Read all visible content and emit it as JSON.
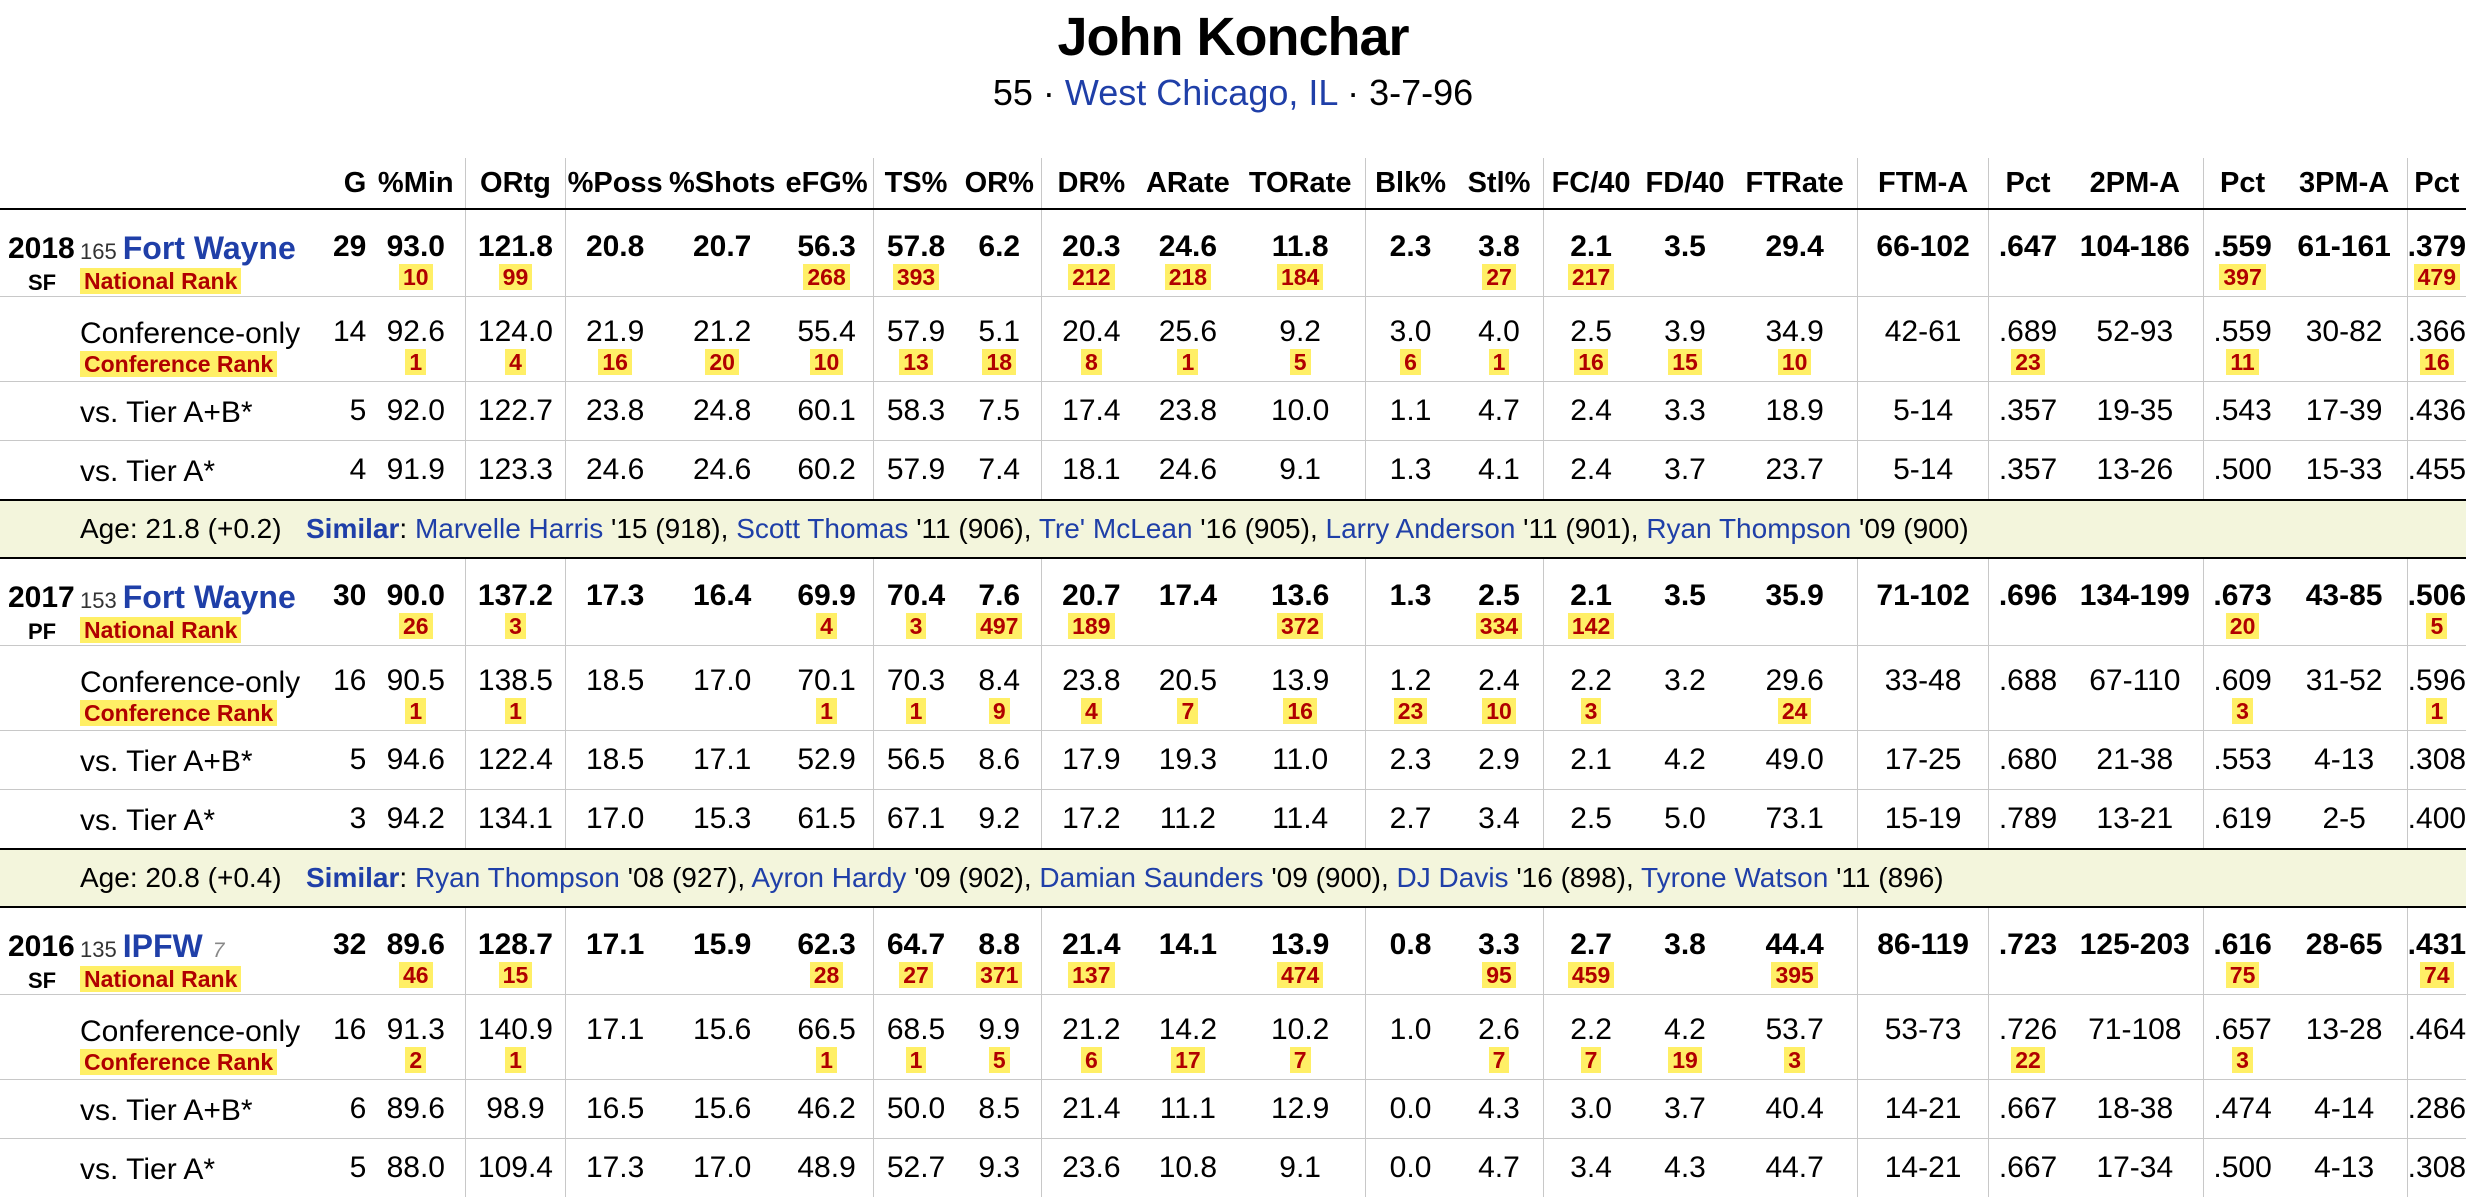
{
  "player": {
    "name": "John Konchar",
    "number": "55",
    "hometown": "West Chicago, IL",
    "birthdate": "3-7-96"
  },
  "columns": [
    "G",
    "%Min",
    "ORtg",
    "%Poss",
    "%Shots",
    "eFG%",
    "TS%",
    "OR%",
    "DR%",
    "ARate",
    "TORate",
    "Blk%",
    "Stl%",
    "FC/40",
    "FD/40",
    "FTRate",
    "FTM-A",
    "Pct",
    "2PM-A",
    "Pct",
    "3PM-A",
    "Pct"
  ],
  "labels": {
    "national_rank": "National Rank",
    "conference_rank": "Conference Rank",
    "conference_only": "Conference-only",
    "tier_ab": "vs. Tier A+B*",
    "tier_a": "vs. Tier A*",
    "similar": "Similar"
  },
  "seasons": [
    {
      "year": "2018",
      "pos": "SF",
      "team_rank": "165",
      "team": "Fort Wayne",
      "team_sub": "",
      "main": {
        "values": [
          "29",
          "93.0",
          "121.8",
          "20.8",
          "20.7",
          "56.3",
          "57.8",
          "6.2",
          "20.3",
          "24.6",
          "11.8",
          "2.3",
          "3.8",
          "2.1",
          "3.5",
          "29.4",
          "66-102",
          ".647",
          "104-186",
          ".559",
          "61-161",
          ".379"
        ],
        "ranks": [
          "",
          "10",
          "99",
          "",
          "",
          "268",
          "393",
          "",
          "212",
          "218",
          "184",
          "",
          "27",
          "217",
          "",
          "",
          "",
          "",
          "",
          "397",
          "",
          "479"
        ]
      },
      "conf": {
        "values": [
          "14",
          "92.6",
          "124.0",
          "21.9",
          "21.2",
          "55.4",
          "57.9",
          "5.1",
          "20.4",
          "25.6",
          "9.2",
          "3.0",
          "4.0",
          "2.5",
          "3.9",
          "34.9",
          "42-61",
          ".689",
          "52-93",
          ".559",
          "30-82",
          ".366"
        ],
        "ranks": [
          "",
          "1",
          "4",
          "16",
          "20",
          "10",
          "13",
          "18",
          "8",
          "1",
          "5",
          "6",
          "1",
          "16",
          "15",
          "10",
          "",
          "23",
          "",
          "11",
          "",
          "16"
        ]
      },
      "tier_ab": {
        "values": [
          "5",
          "92.0",
          "122.7",
          "23.8",
          "24.8",
          "60.1",
          "58.3",
          "7.5",
          "17.4",
          "23.8",
          "10.0",
          "1.1",
          "4.7",
          "2.4",
          "3.3",
          "18.9",
          "5-14",
          ".357",
          "19-35",
          ".543",
          "17-39",
          ".436"
        ]
      },
      "tier_a": {
        "values": [
          "4",
          "91.9",
          "123.3",
          "24.6",
          "24.6",
          "60.2",
          "57.9",
          "7.4",
          "18.1",
          "24.6",
          "9.1",
          "1.3",
          "4.1",
          "2.4",
          "3.7",
          "23.7",
          "5-14",
          ".357",
          "13-26",
          ".500",
          "15-33",
          ".455"
        ]
      },
      "age": "Age: 21.8 (+0.2)",
      "similar": [
        {
          "name": "Marvelle Harris",
          "detail": " '15 (918)"
        },
        {
          "name": "Scott Thomas",
          "detail": " '11 (906)"
        },
        {
          "name": "Tre' McLean",
          "detail": " '16 (905)"
        },
        {
          "name": "Larry Anderson",
          "detail": " '11 (901)"
        },
        {
          "name": "Ryan Thompson",
          "detail": " '09 (900)"
        }
      ]
    },
    {
      "year": "2017",
      "pos": "PF",
      "team_rank": "153",
      "team": "Fort Wayne",
      "team_sub": "",
      "main": {
        "values": [
          "30",
          "90.0",
          "137.2",
          "17.3",
          "16.4",
          "69.9",
          "70.4",
          "7.6",
          "20.7",
          "17.4",
          "13.6",
          "1.3",
          "2.5",
          "2.1",
          "3.5",
          "35.9",
          "71-102",
          ".696",
          "134-199",
          ".673",
          "43-85",
          ".506"
        ],
        "ranks": [
          "",
          "26",
          "3",
          "",
          "",
          "4",
          "3",
          "497",
          "189",
          "",
          "372",
          "",
          "334",
          "142",
          "",
          "",
          "",
          "",
          "",
          "20",
          "",
          "5"
        ]
      },
      "conf": {
        "values": [
          "16",
          "90.5",
          "138.5",
          "18.5",
          "17.0",
          "70.1",
          "70.3",
          "8.4",
          "23.8",
          "20.5",
          "13.9",
          "1.2",
          "2.4",
          "2.2",
          "3.2",
          "29.6",
          "33-48",
          ".688",
          "67-110",
          ".609",
          "31-52",
          ".596"
        ],
        "ranks": [
          "",
          "1",
          "1",
          "",
          "",
          "1",
          "1",
          "9",
          "4",
          "7",
          "16",
          "23",
          "10",
          "3",
          "",
          "24",
          "",
          "",
          "",
          "3",
          "",
          "1"
        ]
      },
      "tier_ab": {
        "values": [
          "5",
          "94.6",
          "122.4",
          "18.5",
          "17.1",
          "52.9",
          "56.5",
          "8.6",
          "17.9",
          "19.3",
          "11.0",
          "2.3",
          "2.9",
          "2.1",
          "4.2",
          "49.0",
          "17-25",
          ".680",
          "21-38",
          ".553",
          "4-13",
          ".308"
        ]
      },
      "tier_a": {
        "values": [
          "3",
          "94.2",
          "134.1",
          "17.0",
          "15.3",
          "61.5",
          "67.1",
          "9.2",
          "17.2",
          "11.2",
          "11.4",
          "2.7",
          "3.4",
          "2.5",
          "5.0",
          "73.1",
          "15-19",
          ".789",
          "13-21",
          ".619",
          "2-5",
          ".400"
        ]
      },
      "age": "Age: 20.8 (+0.4)",
      "similar": [
        {
          "name": "Ryan Thompson",
          "detail": " '08 (927)"
        },
        {
          "name": "Ayron Hardy",
          "detail": " '09 (902)"
        },
        {
          "name": "Damian Saunders",
          "detail": " '09 (900)"
        },
        {
          "name": "DJ Davis",
          "detail": " '16 (898)"
        },
        {
          "name": "Tyrone Watson",
          "detail": " '11 (896)"
        }
      ]
    },
    {
      "year": "2016",
      "pos": "SF",
      "team_rank": "135",
      "team": "IPFW",
      "team_sub": "7",
      "main": {
        "values": [
          "32",
          "89.6",
          "128.7",
          "17.1",
          "15.9",
          "62.3",
          "64.7",
          "8.8",
          "21.4",
          "14.1",
          "13.9",
          "0.8",
          "3.3",
          "2.7",
          "3.8",
          "44.4",
          "86-119",
          ".723",
          "125-203",
          ".616",
          "28-65",
          ".431"
        ],
        "ranks": [
          "",
          "46",
          "15",
          "",
          "",
          "28",
          "27",
          "371",
          "137",
          "",
          "474",
          "",
          "95",
          "459",
          "",
          "395",
          "",
          "",
          "",
          "75",
          "",
          "74"
        ]
      },
      "conf": {
        "values": [
          "16",
          "91.3",
          "140.9",
          "17.1",
          "15.6",
          "66.5",
          "68.5",
          "9.9",
          "21.2",
          "14.2",
          "10.2",
          "1.0",
          "2.6",
          "2.2",
          "4.2",
          "53.7",
          "53-73",
          ".726",
          "71-108",
          ".657",
          "13-28",
          ".464"
        ],
        "ranks": [
          "",
          "2",
          "1",
          "",
          "",
          "1",
          "1",
          "5",
          "6",
          "17",
          "7",
          "",
          "7",
          "7",
          "19",
          "3",
          "",
          "22",
          "",
          "3",
          "",
          ""
        ]
      },
      "tier_ab": {
        "values": [
          "6",
          "89.6",
          "98.9",
          "16.5",
          "15.6",
          "46.2",
          "50.0",
          "8.5",
          "21.4",
          "11.1",
          "12.9",
          "0.0",
          "4.3",
          "3.0",
          "3.7",
          "40.4",
          "14-21",
          ".667",
          "18-38",
          ".474",
          "4-14",
          ".286"
        ]
      },
      "tier_a": {
        "values": [
          "5",
          "88.0",
          "109.4",
          "17.3",
          "17.0",
          "48.9",
          "52.7",
          "9.3",
          "23.6",
          "10.8",
          "9.1",
          "0.0",
          "4.7",
          "3.4",
          "4.3",
          "44.7",
          "14-21",
          ".667",
          "17-34",
          ".500",
          "4-13",
          ".308"
        ]
      }
    }
  ]
}
